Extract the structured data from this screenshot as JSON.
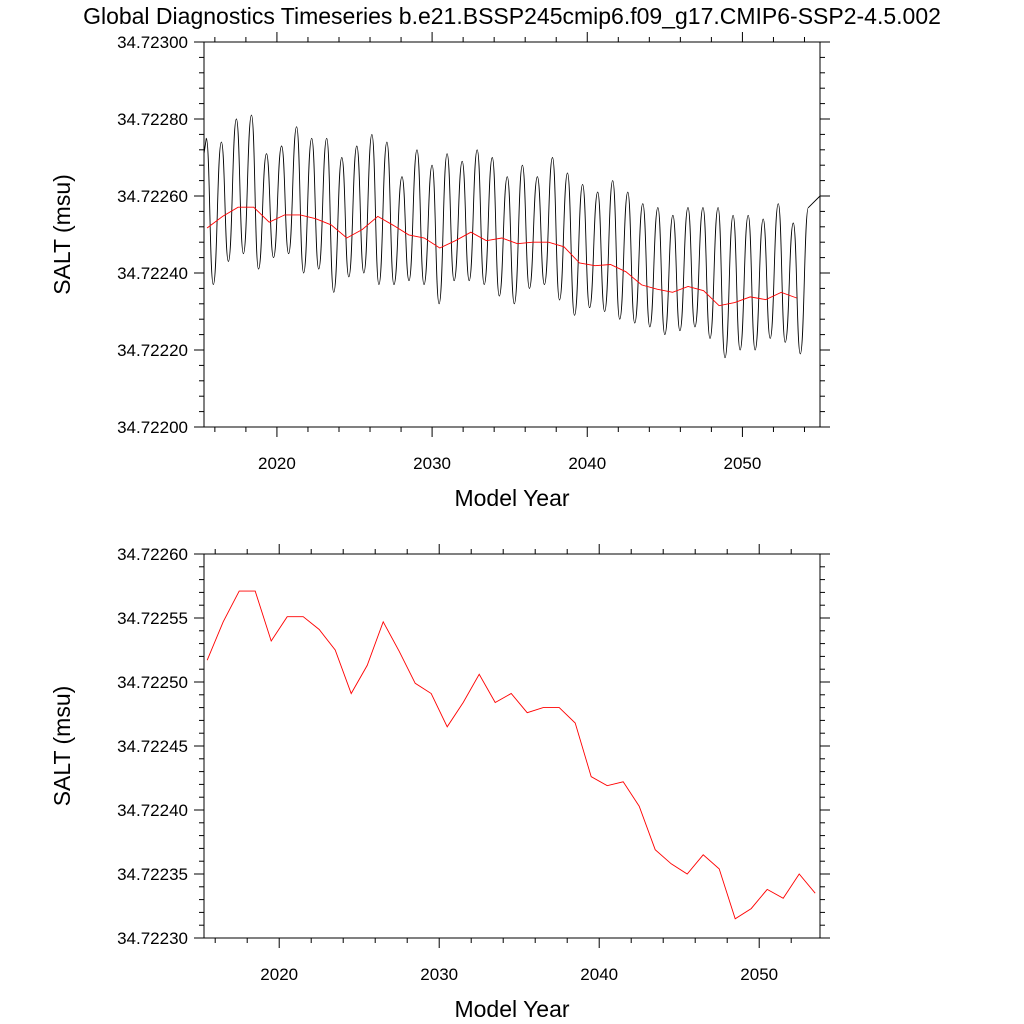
{
  "figure_title": "Global Diagnostics Timeseries b.e21.BSSP245cmip6.f09_g17.CMIP6-SSP2-4.5.002",
  "colors": {
    "monthly": "#000000",
    "annual": "#ff0000",
    "frame": "#000000"
  },
  "chart_data": [
    {
      "type": "line",
      "title": "",
      "xlabel": "Model Year",
      "ylabel": "SALT (msu)",
      "xlim": [
        2015.3,
        2055.0
      ],
      "ylim": [
        34.722,
        34.723
      ],
      "x_ticks": [
        2020,
        2030,
        2040,
        2050
      ],
      "x_tick_labels": [
        "2020",
        "2030",
        "2040",
        "2050"
      ],
      "y_ticks": [
        34.722,
        34.7222,
        34.7224,
        34.7226,
        34.7228,
        34.723
      ],
      "y_tick_labels": [
        "34.72200",
        "34.72220",
        "34.72240",
        "34.72260",
        "34.72280",
        "34.72300"
      ],
      "grid": false,
      "monthly_peaks": [
        34.72275,
        34.72274,
        34.7228,
        34.72281,
        34.72271,
        34.72273,
        34.72278,
        34.72275,
        34.72275,
        34.7227,
        34.72273,
        34.72276,
        34.72274,
        34.72265,
        34.72272,
        34.72268,
        34.72271,
        34.72269,
        34.72272,
        34.7227,
        34.72265,
        34.72268,
        34.72265,
        34.7227,
        34.72266,
        34.72263,
        34.72261,
        34.72264,
        34.72261,
        34.72258,
        34.72257,
        34.72255,
        34.72257,
        34.72257,
        34.72257,
        34.72255,
        34.72255,
        34.72254,
        34.72258,
        34.72253,
        34.72257
      ],
      "monthly_troughs": [
        34.72237,
        34.72243,
        34.72245,
        34.72241,
        34.72244,
        34.72245,
        34.7224,
        34.72241,
        34.72235,
        34.72239,
        34.7224,
        34.72237,
        34.72237,
        34.72238,
        34.72237,
        34.72232,
        34.72238,
        34.72238,
        34.72237,
        34.72234,
        34.72232,
        34.72236,
        34.72237,
        34.72233,
        34.72229,
        34.72231,
        34.7223,
        34.72228,
        34.72227,
        34.72226,
        34.72224,
        34.72225,
        34.72226,
        34.72223,
        34.72218,
        34.7222,
        34.7222,
        34.72223,
        34.72222,
        34.72219
      ],
      "series": [
        {
          "x": [
            2015.5,
            2016.5,
            2017.5,
            2018.5,
            2019.5,
            2020.5,
            2021.5,
            2022.5,
            2023.5,
            2024.5,
            2025.5,
            2026.5,
            2027.5,
            2028.5,
            2029.5,
            2030.5,
            2031.5,
            2032.5,
            2033.5,
            2034.5,
            2035.5,
            2036.5,
            2037.5,
            2038.5,
            2039.5,
            2040.5,
            2041.5,
            2042.5,
            2043.5,
            2044.5,
            2045.5,
            2046.5,
            2047.5,
            2048.5,
            2049.5,
            2050.5,
            2051.5,
            2052.5,
            2053.5
          ],
          "values": [
            34.722517,
            34.722547,
            34.722571,
            34.722571,
            34.722532,
            34.722551,
            34.722551,
            34.722541,
            34.722525,
            34.722491,
            34.722513,
            34.722547,
            34.722524,
            34.722499,
            34.722491,
            34.722465,
            34.722484,
            34.722506,
            34.722484,
            34.722491,
            34.722476,
            34.72248,
            34.72248,
            34.722468,
            34.722426,
            34.722419,
            34.722422,
            34.722403,
            34.722369,
            34.722358,
            34.72235,
            34.722365,
            34.722354,
            34.722315,
            34.722323,
            34.722338,
            34.722331,
            34.72235,
            34.722335
          ]
        }
      ]
    },
    {
      "type": "line",
      "title": "",
      "xlabel": "Model Year",
      "ylabel": "SALT (msu)",
      "xlim": [
        2015.3,
        2053.8
      ],
      "ylim": [
        34.7223,
        34.7226
      ],
      "x_ticks": [
        2020,
        2030,
        2040,
        2050
      ],
      "x_tick_labels": [
        "2020",
        "2030",
        "2040",
        "2050"
      ],
      "y_ticks": [
        34.7223,
        34.72235,
        34.7224,
        34.72245,
        34.7225,
        34.72255,
        34.7226
      ],
      "y_tick_labels": [
        "34.72230",
        "34.72235",
        "34.72240",
        "34.72245",
        "34.72250",
        "34.72255",
        "34.72260"
      ],
      "grid": false,
      "series": [
        {
          "x": [
            2015.5,
            2016.5,
            2017.5,
            2018.5,
            2019.5,
            2020.5,
            2021.5,
            2022.5,
            2023.5,
            2024.5,
            2025.5,
            2026.5,
            2027.5,
            2028.5,
            2029.5,
            2030.5,
            2031.5,
            2032.5,
            2033.5,
            2034.5,
            2035.5,
            2036.5,
            2037.5,
            2038.5,
            2039.5,
            2040.5,
            2041.5,
            2042.5,
            2043.5,
            2044.5,
            2045.5,
            2046.5,
            2047.5,
            2048.5,
            2049.5,
            2050.5,
            2051.5,
            2052.5,
            2053.5
          ],
          "values": [
            34.722517,
            34.722547,
            34.722571,
            34.722571,
            34.722532,
            34.722551,
            34.722551,
            34.722541,
            34.722525,
            34.722491,
            34.722513,
            34.722547,
            34.722524,
            34.722499,
            34.722491,
            34.722465,
            34.722484,
            34.722506,
            34.722484,
            34.722491,
            34.722476,
            34.72248,
            34.72248,
            34.722468,
            34.722426,
            34.722419,
            34.722422,
            34.722403,
            34.722369,
            34.722358,
            34.72235,
            34.722365,
            34.722354,
            34.722315,
            34.722323,
            34.722338,
            34.722331,
            34.72235,
            34.722335
          ]
        }
      ]
    }
  ]
}
